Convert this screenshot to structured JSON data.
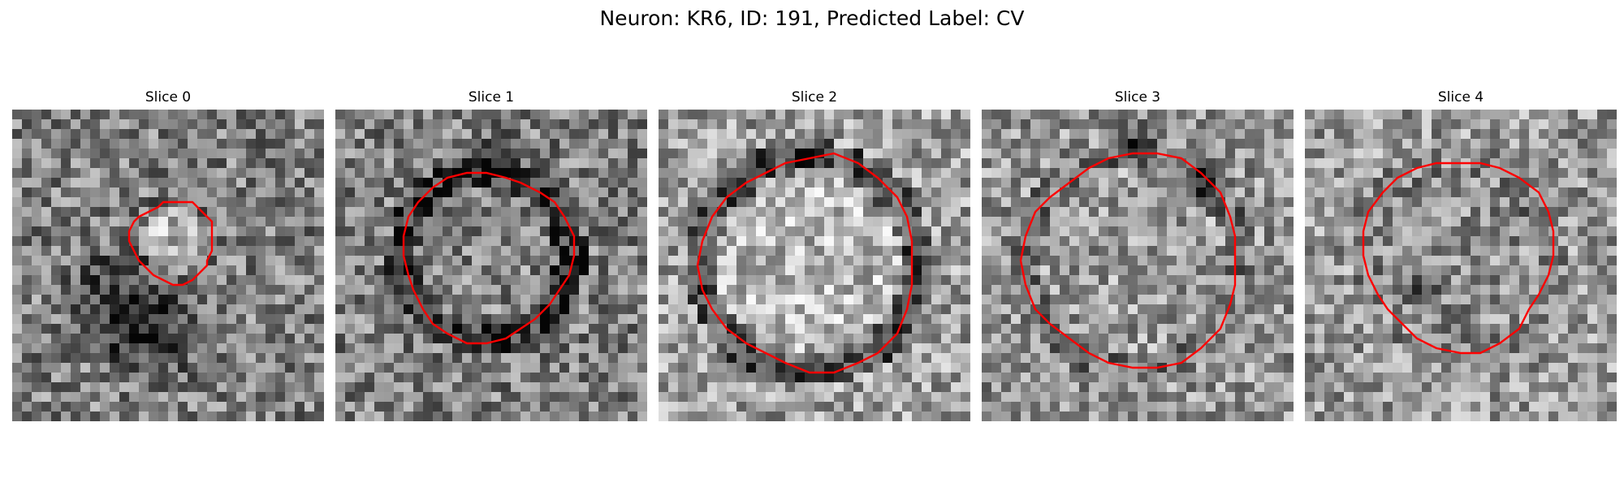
{
  "figure": {
    "title": "Neuron: KR6, ID: 191, Predicted Label: CV"
  },
  "panels": [
    {
      "title": "Slice 0",
      "pattern": "small-bright-blob",
      "seed": 11
    },
    {
      "title": "Slice 1",
      "pattern": "dark-ring",
      "seed": 23
    },
    {
      "title": "Slice 2",
      "pattern": "bright-disc-dark-rim",
      "seed": 37
    },
    {
      "title": "Slice 3",
      "pattern": "ring-dark-top",
      "seed": 53
    },
    {
      "title": "Slice 4",
      "pattern": "faint-ring",
      "seed": 71
    }
  ],
  "colors": {
    "contour": "#ff0000"
  }
}
